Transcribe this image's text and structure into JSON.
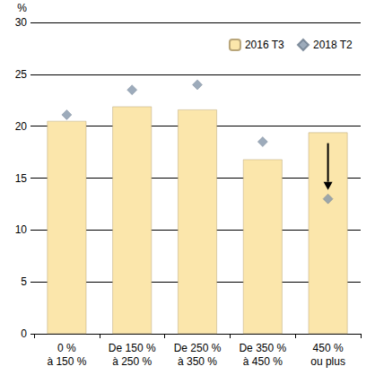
{
  "chart_data": {
    "type": "bar",
    "y_label": "%",
    "categories": [
      "0 %\nà 150 %",
      "De 150 %\nà 250 %",
      "De 250 %\nà 350 %",
      "De 350 %\nà 450 %",
      "450 %\nou plus"
    ],
    "series": [
      {
        "name": "2016 T3",
        "type": "bar",
        "color": "#fbe6ab",
        "values": [
          20.5,
          21.9,
          21.6,
          16.8,
          19.4
        ]
      },
      {
        "name": "2018 T2",
        "type": "scatter",
        "marker": "diamond",
        "color": "#8596aa",
        "values": [
          21.1,
          23.5,
          24.0,
          18.5,
          13.0
        ]
      }
    ],
    "ylim": [
      0,
      30
    ],
    "yticks": [
      0,
      5,
      10,
      15,
      20,
      25,
      30
    ],
    "grid": true,
    "legend": "top-right"
  }
}
